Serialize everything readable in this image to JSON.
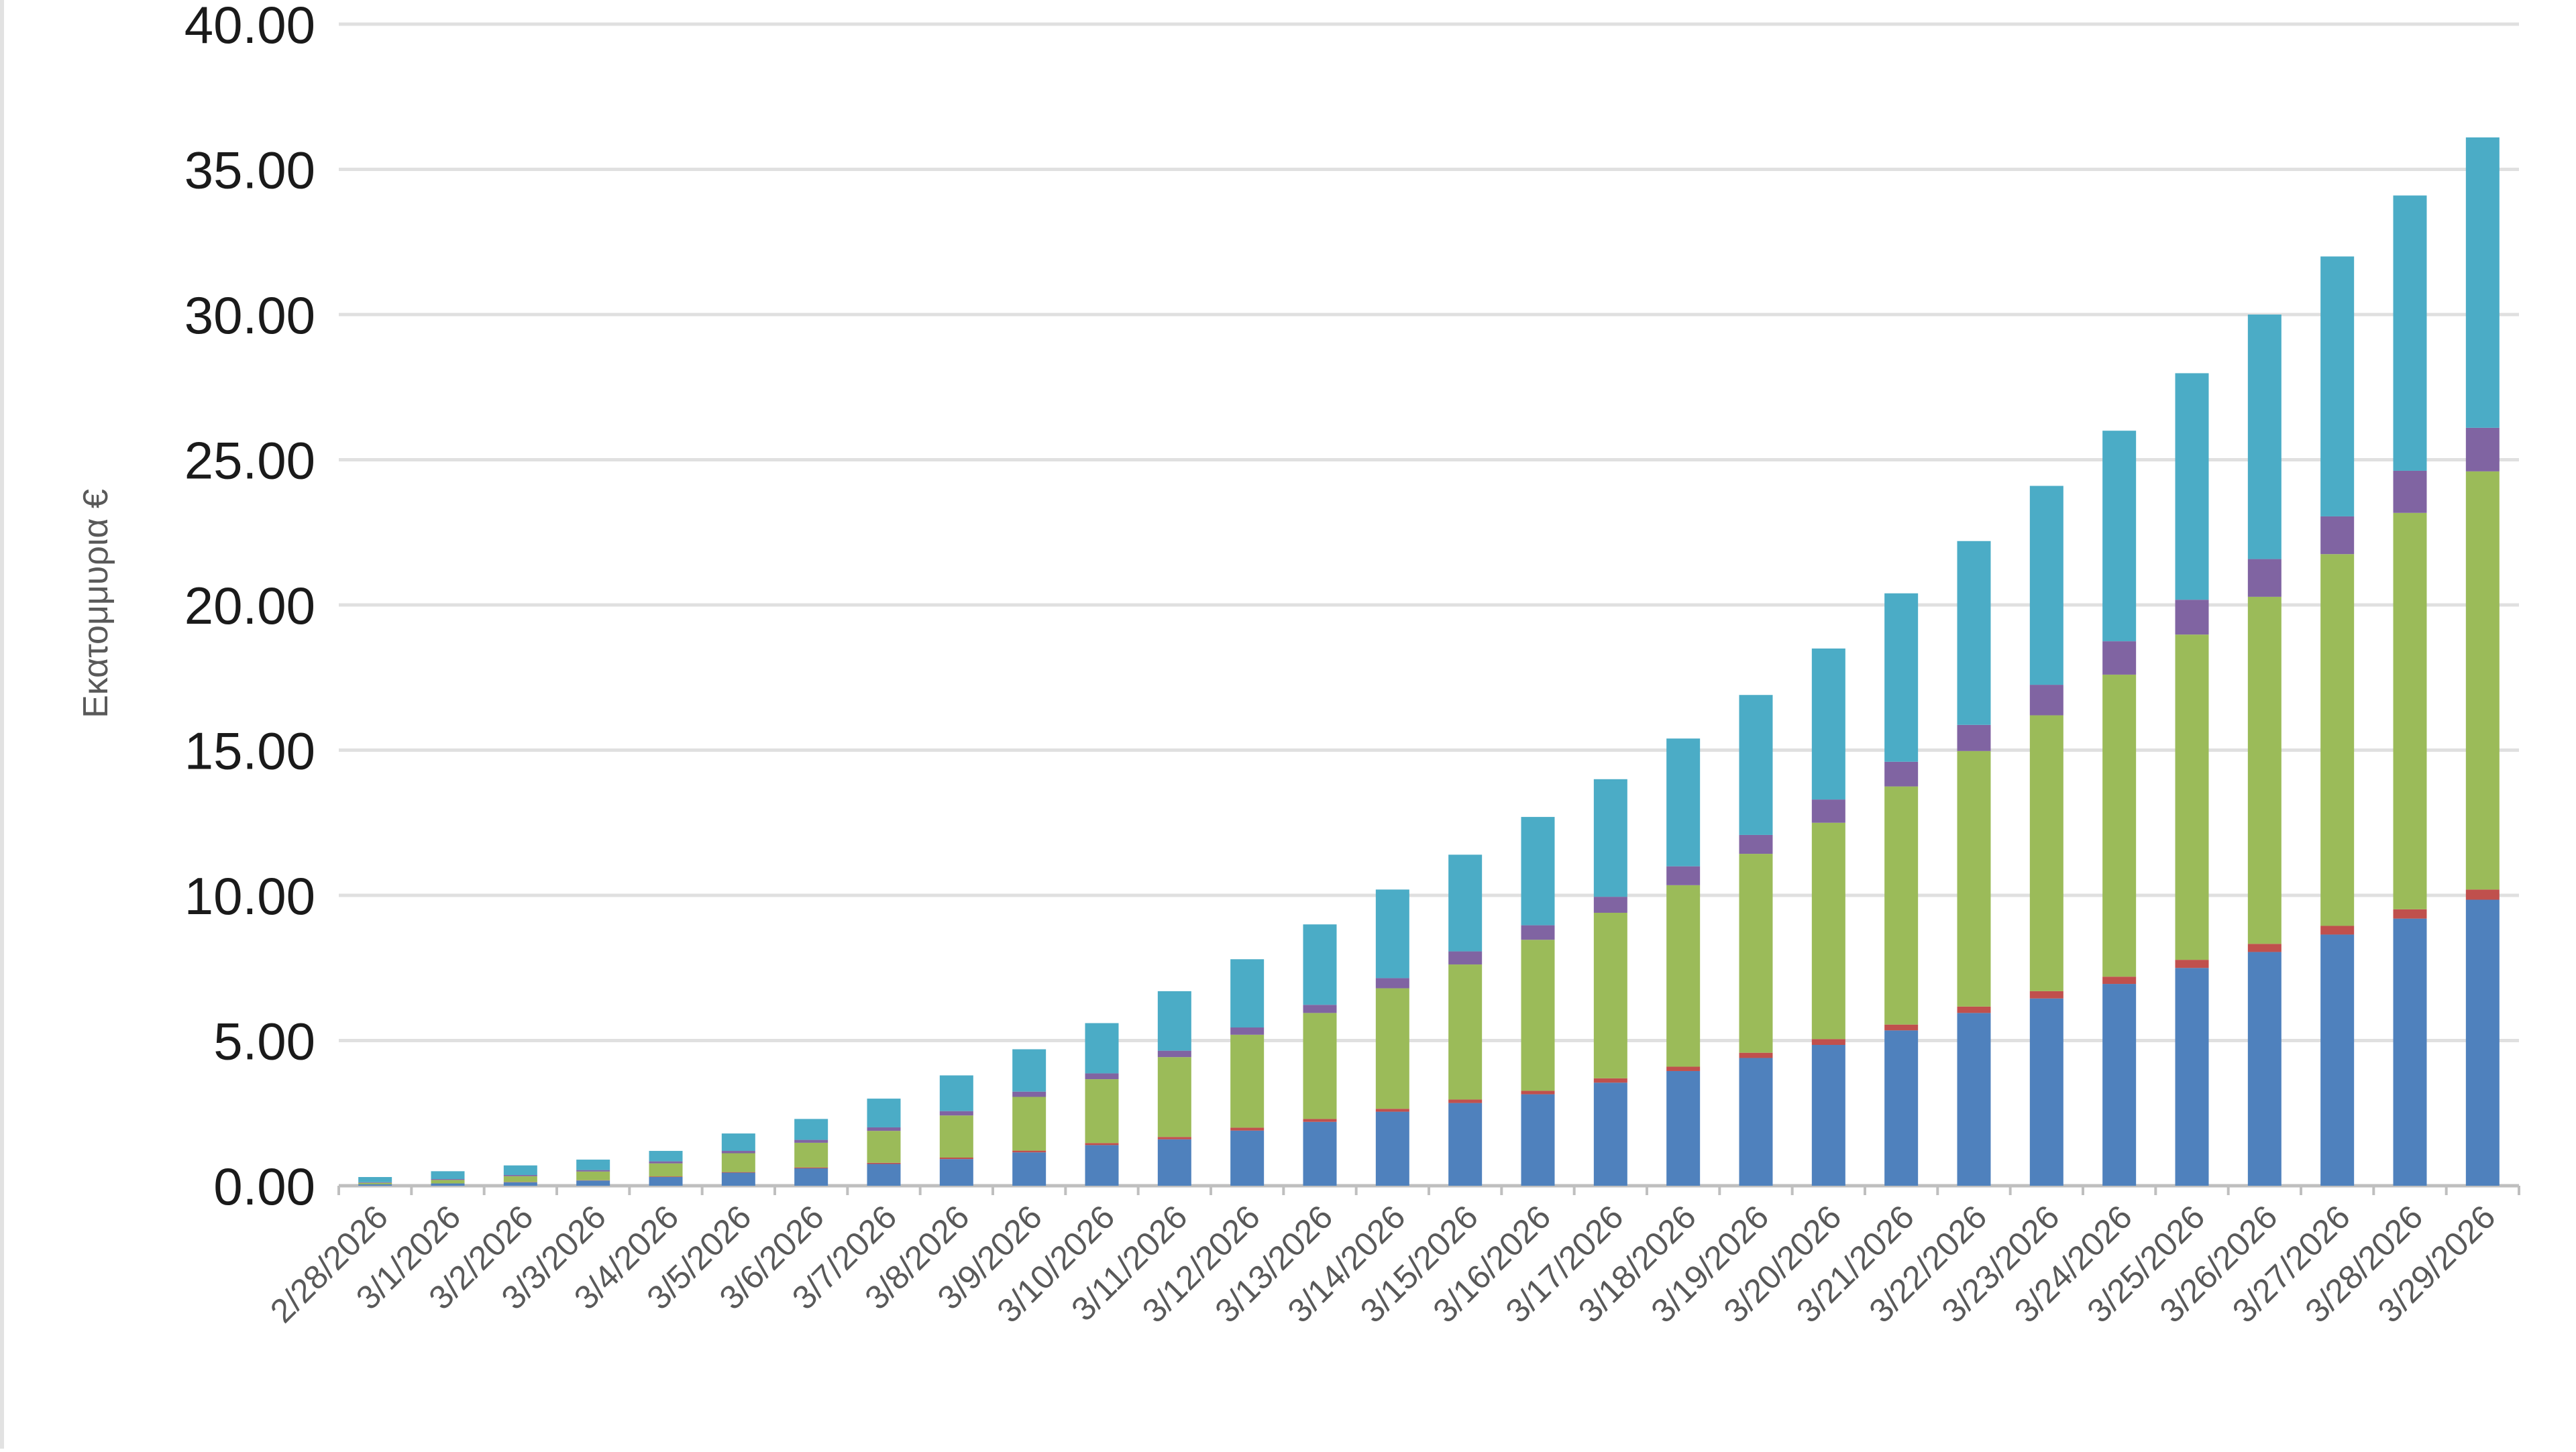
{
  "chart_data": {
    "type": "bar",
    "stacked": true,
    "title": "",
    "xlabel": "",
    "ylabel": "Εκατομμυρια €",
    "ylim": [
      0,
      40
    ],
    "yticks": [
      "0.00",
      "5.00",
      "10.00",
      "15.00",
      "20.00",
      "25.00",
      "30.00",
      "35.00",
      "40.00"
    ],
    "grid": true,
    "categories": [
      "2/28/2026",
      "3/1/2026",
      "3/2/2026",
      "3/3/2026",
      "3/4/2026",
      "3/5/2026",
      "3/6/2026",
      "3/7/2026",
      "3/8/2026",
      "3/9/2026",
      "3/10/2026",
      "3/11/2026",
      "3/12/2026",
      "3/13/2026",
      "3/14/2026",
      "3/15/2026",
      "3/16/2026",
      "3/17/2026",
      "3/18/2026",
      "3/19/2026",
      "3/20/2026",
      "3/21/2026",
      "3/22/2026",
      "3/23/2026",
      "3/24/2026",
      "3/25/2026",
      "3/26/2026",
      "3/27/2026",
      "3/28/2026",
      "3/29/2026"
    ],
    "series": [
      {
        "color": "#4f81bd",
        "values": [
          0.05,
          0.08,
          0.12,
          0.18,
          0.3,
          0.45,
          0.6,
          0.75,
          0.92,
          1.15,
          1.4,
          1.6,
          1.9,
          2.2,
          2.55,
          2.85,
          3.15,
          3.55,
          3.95,
          4.4,
          4.85,
          5.35,
          5.95,
          6.45,
          6.95,
          7.5,
          8.05,
          8.65,
          9.2,
          9.85
        ]
      },
      {
        "color": "#c0504d",
        "values": [
          0.0,
          0.0,
          0.01,
          0.01,
          0.02,
          0.02,
          0.03,
          0.04,
          0.05,
          0.06,
          0.07,
          0.08,
          0.1,
          0.1,
          0.1,
          0.12,
          0.12,
          0.15,
          0.15,
          0.18,
          0.2,
          0.2,
          0.22,
          0.25,
          0.25,
          0.28,
          0.28,
          0.3,
          0.32,
          0.35
        ]
      },
      {
        "color": "#9bbb59",
        "values": [
          0.05,
          0.12,
          0.2,
          0.3,
          0.45,
          0.65,
          0.85,
          1.1,
          1.45,
          1.85,
          2.2,
          2.75,
          3.2,
          3.65,
          4.15,
          4.65,
          5.2,
          5.7,
          6.25,
          6.85,
          7.45,
          8.2,
          8.8,
          9.5,
          10.4,
          11.2,
          11.95,
          12.8,
          13.65,
          14.4
        ]
      },
      {
        "color": "#8064a2",
        "values": [
          0.02,
          0.03,
          0.04,
          0.05,
          0.07,
          0.08,
          0.1,
          0.12,
          0.15,
          0.18,
          0.2,
          0.22,
          0.25,
          0.28,
          0.35,
          0.45,
          0.5,
          0.55,
          0.65,
          0.65,
          0.8,
          0.85,
          0.9,
          1.05,
          1.15,
          1.2,
          1.3,
          1.3,
          1.45,
          1.5
        ]
      },
      {
        "color": "#4bacc6",
        "values": [
          0.18,
          0.27,
          0.33,
          0.36,
          0.36,
          0.6,
          0.72,
          0.99,
          1.23,
          1.46,
          1.73,
          2.05,
          2.35,
          2.77,
          3.05,
          3.33,
          3.73,
          4.05,
          4.4,
          4.82,
          5.2,
          5.8,
          6.33,
          6.85,
          7.25,
          7.8,
          8.42,
          8.95,
          9.48,
          10.0
        ]
      }
    ]
  }
}
